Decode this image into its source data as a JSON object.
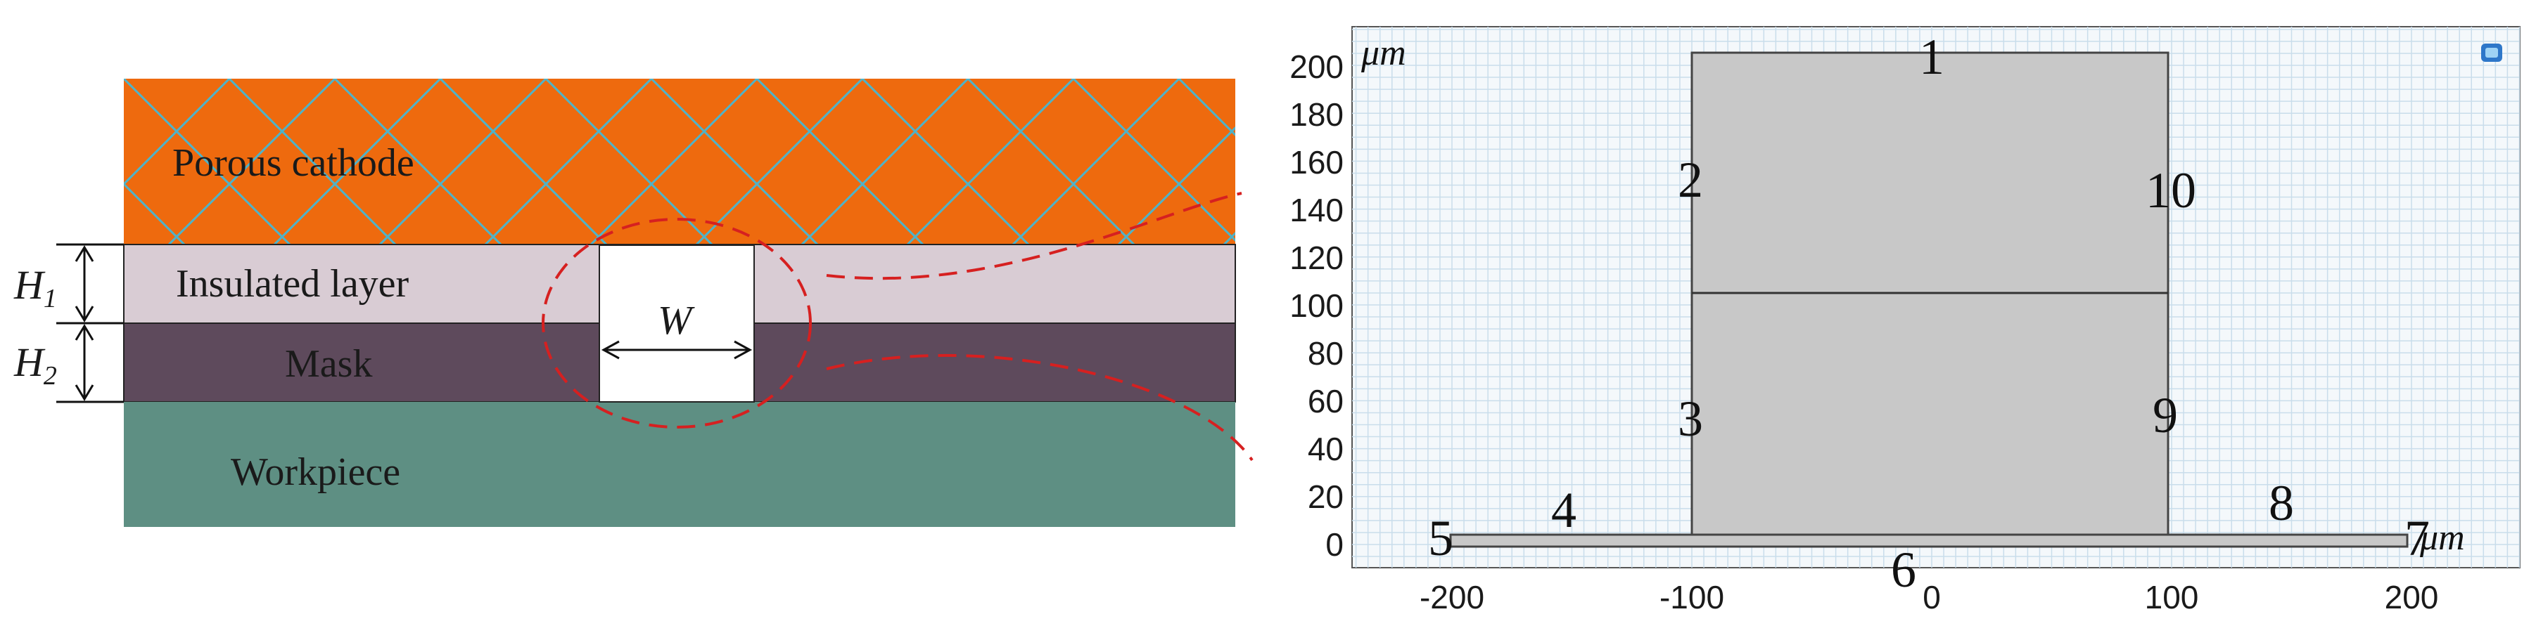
{
  "layers": {
    "cathode": {
      "label": "Porous cathode",
      "color": "#EE6A0E",
      "mesh_color": "#4FB3C8"
    },
    "insulated": {
      "label": "Insulated layer",
      "color": "#D9CCD4"
    },
    "mask": {
      "label": "Mask",
      "color": "#5E4A5C"
    },
    "workpiece": {
      "label": "Workpiece",
      "color": "#5E8F83"
    }
  },
  "dimensions": {
    "h1": {
      "main": "H",
      "sub": "1"
    },
    "h2": {
      "main": "H",
      "sub": "2"
    },
    "w": "W"
  },
  "callout_color": "#D62020",
  "plot": {
    "unit_label_y": "μm",
    "unit_label_x": "μm",
    "x_ticks": [
      "-200",
      "-100",
      "0",
      "100",
      "200"
    ],
    "y_ticks": [
      "0",
      "20",
      "40",
      "60",
      "80",
      "100",
      "120",
      "140",
      "160",
      "180",
      "200"
    ],
    "grid_color": "#C9DDEB",
    "plot_bg": "#F4F8FB",
    "domain_fill": "#C8C8C8",
    "boundary_labels": [
      "1",
      "2",
      "3",
      "4",
      "5",
      "6",
      "7",
      "8",
      "9",
      "10"
    ]
  }
}
